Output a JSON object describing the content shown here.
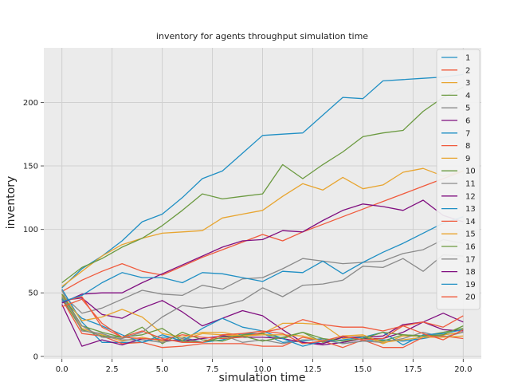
{
  "chart_data": {
    "type": "line",
    "title": "inventory for agents throughput simulation time",
    "xlabel": "simulation time",
    "ylabel": "inventory",
    "xlim": [
      -0.9,
      20.9
    ],
    "ylim": [
      -2,
      243
    ],
    "xticks": [
      0.0,
      2.5,
      5.0,
      7.5,
      10.0,
      12.5,
      15.0,
      17.5,
      20.0
    ],
    "xtick_labels": [
      "0.0",
      "2.5",
      "5.0",
      "7.5",
      "10.0",
      "12.5",
      "15.0",
      "17.5",
      "20.0"
    ],
    "yticks": [
      0,
      50,
      100,
      150,
      200
    ],
    "ytick_labels": [
      "0",
      "50",
      "100",
      "150",
      "200"
    ],
    "grid": true,
    "legend_position": "top-right",
    "x": [
      0,
      1,
      2,
      3,
      4,
      5,
      6,
      7,
      8,
      9,
      10,
      11,
      12,
      13,
      14,
      15,
      16,
      17,
      18,
      19,
      20
    ],
    "series": [
      {
        "name": "1",
        "color": "#1f8fc4",
        "values": [
          54,
          69,
          79,
          91,
          106,
          112,
          125,
          140,
          146,
          160,
          174,
          175,
          176,
          190,
          204,
          203,
          217,
          218,
          219,
          220,
          222
        ]
      },
      {
        "name": "2",
        "color": "#f05a3c",
        "values": [
          51,
          60,
          67,
          73,
          67,
          64,
          71,
          78,
          84,
          90,
          96,
          91,
          98,
          104,
          110,
          116,
          122,
          128,
          134,
          140,
          146
        ]
      },
      {
        "name": "3",
        "color": "#e8a530",
        "values": [
          55,
          67,
          79,
          88,
          93,
          97,
          98,
          99,
          109,
          112,
          115,
          126,
          136,
          131,
          141,
          132,
          135,
          145,
          148,
          142,
          146
        ]
      },
      {
        "name": "4",
        "color": "#6b9a40",
        "values": [
          58,
          70,
          77,
          86,
          93,
          103,
          115,
          128,
          124,
          126,
          128,
          151,
          140,
          151,
          161,
          173,
          176,
          178,
          193,
          204,
          212
        ]
      },
      {
        "name": "5",
        "color": "#8a8a8a",
        "values": [
          49,
          34,
          38,
          45,
          52,
          49,
          48,
          56,
          53,
          61,
          62,
          69,
          77,
          75,
          73,
          74,
          75,
          81,
          84,
          92,
          89
        ]
      },
      {
        "name": "6",
        "color": "#800f80",
        "values": [
          44,
          46,
          33,
          30,
          38,
          44,
          35,
          24,
          30,
          36,
          32,
          21,
          11,
          9,
          11,
          14,
          14,
          19,
          27,
          34,
          27
        ]
      },
      {
        "name": "7",
        "color": "#1f8fc4",
        "values": [
          53,
          27,
          11,
          11,
          11,
          15,
          15,
          11,
          13,
          18,
          18,
          11,
          12,
          14,
          10,
          12,
          13,
          12,
          14,
          17,
          19
        ]
      },
      {
        "name": "8",
        "color": "#f05a3c",
        "values": [
          45,
          18,
          16,
          10,
          11,
          7,
          8,
          10,
          10,
          10,
          8,
          8,
          15,
          12,
          7,
          13,
          7,
          7,
          15,
          16,
          14
        ]
      },
      {
        "name": "9",
        "color": "#e8a530",
        "values": [
          48,
          22,
          17,
          12,
          15,
          12,
          13,
          18,
          17,
          16,
          18,
          26,
          26,
          25,
          14,
          16,
          10,
          16,
          16,
          17,
          19
        ]
      },
      {
        "name": "10",
        "color": "#6b9a40",
        "values": [
          46,
          21,
          16,
          15,
          23,
          10,
          19,
          13,
          12,
          17,
          18,
          14,
          19,
          11,
          15,
          15,
          12,
          17,
          16,
          19,
          22
        ]
      },
      {
        "name": "11",
        "color": "#8a8a8a",
        "values": [
          52,
          20,
          18,
          13,
          13,
          11,
          14,
          11,
          17,
          11,
          13,
          10,
          13,
          13,
          10,
          12,
          11,
          14,
          19,
          15,
          19
        ]
      },
      {
        "name": "12",
        "color": "#800f80",
        "values": [
          41,
          8,
          13,
          9,
          14,
          13,
          12,
          14,
          16,
          15,
          15,
          14,
          11,
          10,
          15,
          15,
          16,
          25,
          27,
          21,
          20
        ]
      },
      {
        "name": "13",
        "color": "#1f8fc4",
        "values": [
          45,
          30,
          24,
          17,
          11,
          17,
          12,
          22,
          30,
          23,
          20,
          14,
          8,
          12,
          13,
          15,
          19,
          9,
          17,
          18,
          21
        ]
      },
      {
        "name": "14",
        "color": "#f05a3c",
        "values": [
          43,
          47,
          23,
          15,
          14,
          13,
          17,
          15,
          14,
          15,
          19,
          22,
          29,
          25,
          23,
          23,
          20,
          24,
          27,
          23,
          32
        ]
      },
      {
        "name": "15",
        "color": "#e8a530",
        "values": [
          49,
          28,
          31,
          37,
          31,
          18,
          15,
          19,
          19,
          16,
          17,
          17,
          16,
          12,
          16,
          17,
          11,
          13,
          15,
          15,
          16
        ]
      },
      {
        "name": "16",
        "color": "#6b9a40",
        "values": [
          49,
          24,
          19,
          15,
          17,
          22,
          12,
          11,
          15,
          16,
          12,
          15,
          19,
          14,
          12,
          14,
          19,
          17,
          16,
          17,
          24
        ]
      },
      {
        "name": "17",
        "color": "#8a8a8a",
        "values": [
          47,
          24,
          15,
          14,
          19,
          31,
          40,
          38,
          40,
          44,
          54,
          47,
          56,
          57,
          60,
          71,
          70,
          77,
          67,
          80,
          79
        ]
      },
      {
        "name": "18",
        "color": "#800f80",
        "values": [
          42,
          49,
          50,
          50,
          58,
          65,
          72,
          79,
          86,
          91,
          92,
          99,
          98,
          107,
          115,
          120,
          118,
          115,
          123,
          111,
          106
        ]
      },
      {
        "name": "19",
        "color": "#1f8fc4",
        "values": [
          43,
          48,
          58,
          66,
          62,
          62,
          58,
          66,
          65,
          62,
          59,
          67,
          66,
          75,
          65,
          74,
          82,
          89,
          97,
          105,
          110
        ]
      },
      {
        "name": "20",
        "color": "#f05a3c",
        "values": [
          39,
          45,
          26,
          15,
          20,
          14,
          11,
          11,
          17,
          18,
          20,
          18,
          10,
          12,
          16,
          13,
          14,
          24,
          18,
          13,
          21
        ]
      }
    ]
  }
}
